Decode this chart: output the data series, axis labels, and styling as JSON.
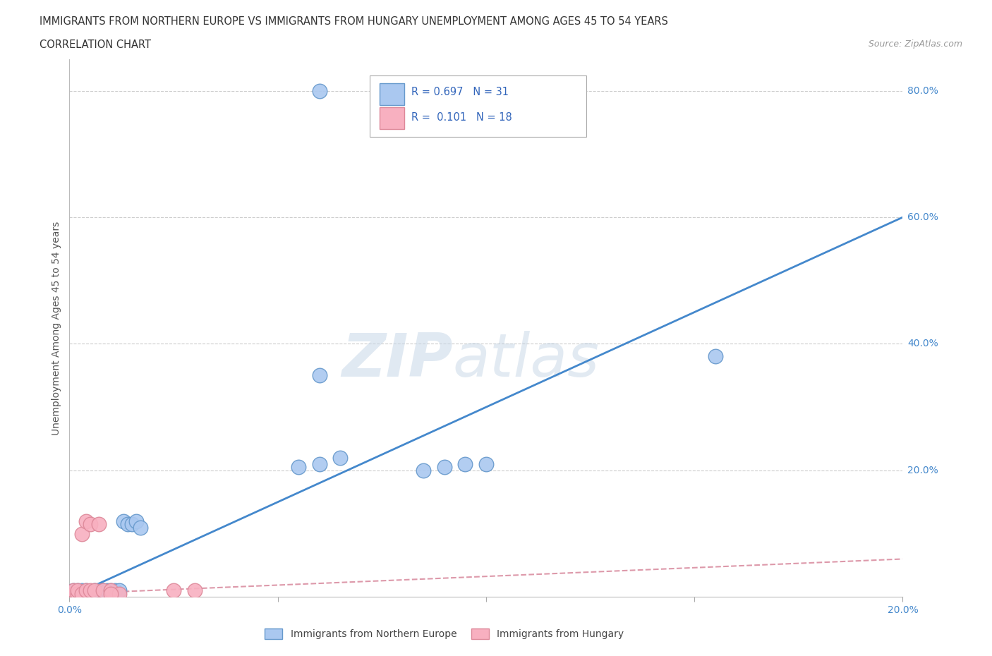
{
  "title_line1": "IMMIGRANTS FROM NORTHERN EUROPE VS IMMIGRANTS FROM HUNGARY UNEMPLOYMENT AMONG AGES 45 TO 54 YEARS",
  "title_line2": "CORRELATION CHART",
  "source": "Source: ZipAtlas.com",
  "ylabel": "Unemployment Among Ages 45 to 54 years",
  "xlim": [
    0,
    0.2
  ],
  "ylim": [
    0,
    0.85
  ],
  "blue_R": 0.697,
  "blue_N": 31,
  "pink_R": 0.101,
  "pink_N": 18,
  "blue_scatter_x": [
    0.001,
    0.001,
    0.002,
    0.002,
    0.003,
    0.003,
    0.004,
    0.004,
    0.005,
    0.006,
    0.007,
    0.008,
    0.009,
    0.01,
    0.011,
    0.012,
    0.013,
    0.014,
    0.015,
    0.016,
    0.017,
    0.06,
    0.065,
    0.085,
    0.09,
    0.095,
    0.1,
    0.055,
    0.06,
    0.155,
    0.06
  ],
  "blue_scatter_y": [
    0.005,
    0.01,
    0.005,
    0.01,
    0.005,
    0.01,
    0.005,
    0.01,
    0.005,
    0.01,
    0.01,
    0.01,
    0.01,
    0.01,
    0.01,
    0.01,
    0.12,
    0.115,
    0.115,
    0.12,
    0.11,
    0.35,
    0.22,
    0.2,
    0.205,
    0.21,
    0.21,
    0.205,
    0.21,
    0.38,
    0.8
  ],
  "pink_scatter_x": [
    0.001,
    0.001,
    0.002,
    0.002,
    0.003,
    0.003,
    0.004,
    0.004,
    0.005,
    0.005,
    0.006,
    0.007,
    0.008,
    0.01,
    0.012,
    0.025,
    0.03,
    0.01
  ],
  "pink_scatter_y": [
    0.005,
    0.01,
    0.005,
    0.01,
    0.005,
    0.1,
    0.12,
    0.01,
    0.01,
    0.115,
    0.01,
    0.115,
    0.01,
    0.01,
    0.005,
    0.01,
    0.01,
    0.005
  ],
  "blue_color": "#aac8f0",
  "blue_edge_color": "#6699cc",
  "pink_color": "#f8b0c0",
  "pink_edge_color": "#dd8899",
  "blue_line_color": "#4488cc",
  "pink_line_color": "#dd99aa",
  "watermark_zip": "ZIP",
  "watermark_atlas": "atlas",
  "legend_label_blue": "Immigrants from Northern Europe",
  "legend_label_pink": "Immigrants from Hungary",
  "title_color": "#404040",
  "tick_color": "#4488cc",
  "grid_color": "#cccccc",
  "blue_line_x": [
    0.0,
    0.2
  ],
  "blue_line_y": [
    0.0,
    0.6
  ],
  "pink_line_x": [
    0.0,
    0.2
  ],
  "pink_line_y": [
    0.005,
    0.06
  ]
}
